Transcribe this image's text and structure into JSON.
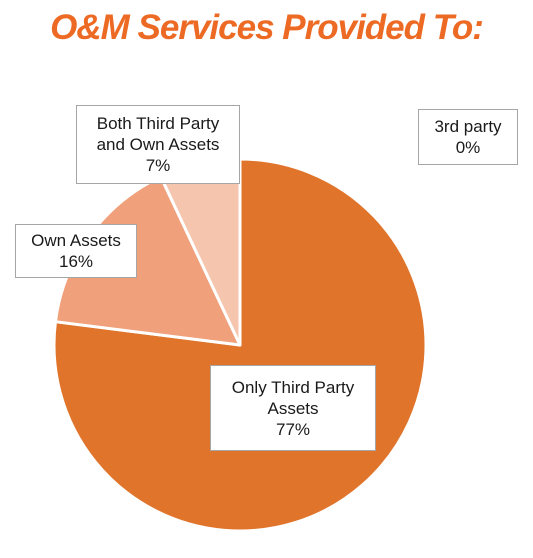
{
  "chart_data": {
    "type": "pie",
    "title": "O&M Services Provided To:",
    "slices": [
      {
        "label_lines": [
          "Only Third Party",
          "Assets"
        ],
        "value": 77,
        "value_label": "77%",
        "color": "#e0742a"
      },
      {
        "label_lines": [
          "Own Assets"
        ],
        "value": 16,
        "value_label": "16%",
        "color": "#f0a07a"
      },
      {
        "label_lines": [
          "Both Third Party",
          "and Own Assets"
        ],
        "value": 7,
        "value_label": "7%",
        "color": "#f6c5ad"
      },
      {
        "label_lines": [
          "3rd party"
        ],
        "value": 0,
        "value_label": "0%",
        "color": "#fbe3d6"
      }
    ],
    "legend": "none",
    "start_angle_deg": 0,
    "direction": "clockwise"
  }
}
